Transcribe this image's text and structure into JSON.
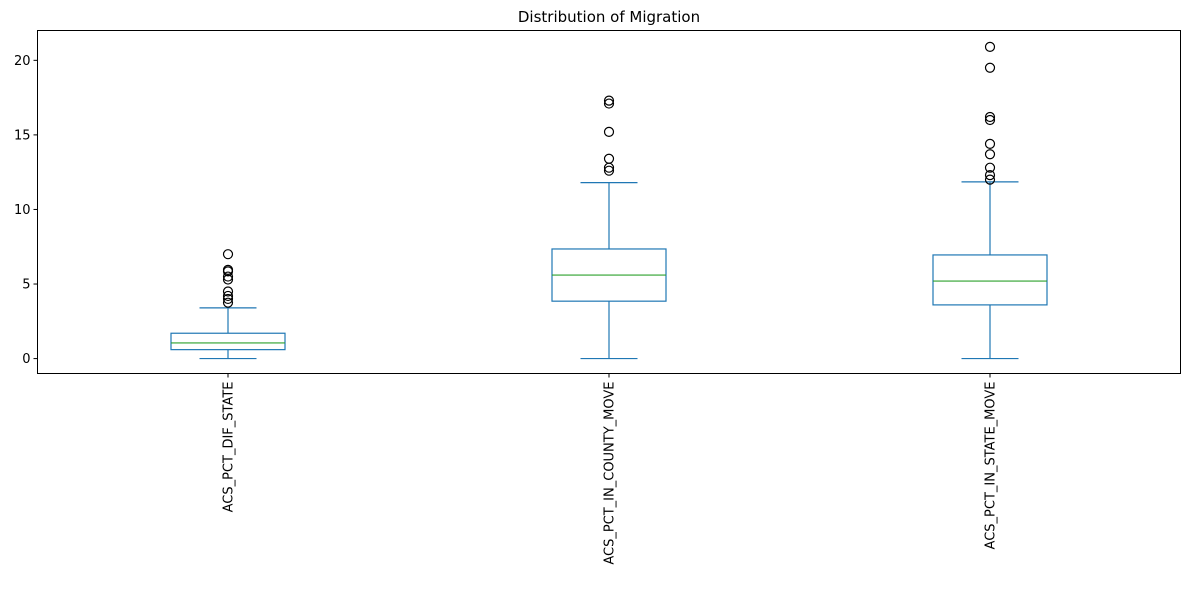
{
  "chart_data": {
    "type": "box",
    "title": "Distribution of Migration",
    "xlabel": "",
    "ylabel": "",
    "ylim": [
      -1.0,
      22.0
    ],
    "yticks": [
      0,
      5,
      10,
      15,
      20
    ],
    "grid": false,
    "legend": "none",
    "categories": [
      "ACS_PCT_DIF_STATE",
      "ACS_PCT_IN_COUNTY_MOVE",
      "ACS_PCT_IN_STATE_MOVE"
    ],
    "boxes": [
      {
        "whisker_low": 0.0,
        "q1": 0.6,
        "median": 1.05,
        "q3": 1.7,
        "whisker_high": 3.4,
        "outliers": [
          3.75,
          4.0,
          4.2,
          4.5,
          5.3,
          5.5,
          5.85,
          5.95,
          7.0
        ]
      },
      {
        "whisker_low": 0.0,
        "q1": 3.85,
        "median": 5.6,
        "q3": 7.35,
        "whisker_high": 11.8,
        "outliers": [
          12.6,
          12.8,
          13.4,
          15.2,
          17.1,
          17.3
        ]
      },
      {
        "whisker_low": 0.0,
        "q1": 3.6,
        "median": 5.2,
        "q3": 6.95,
        "whisker_high": 11.85,
        "outliers": [
          12.0,
          12.3,
          12.8,
          13.7,
          14.4,
          16.0,
          16.2,
          19.5,
          20.9
        ]
      }
    ],
    "colors": {
      "box": "#1f77b4",
      "median": "#2ca02c",
      "outlier": "#000000"
    }
  }
}
